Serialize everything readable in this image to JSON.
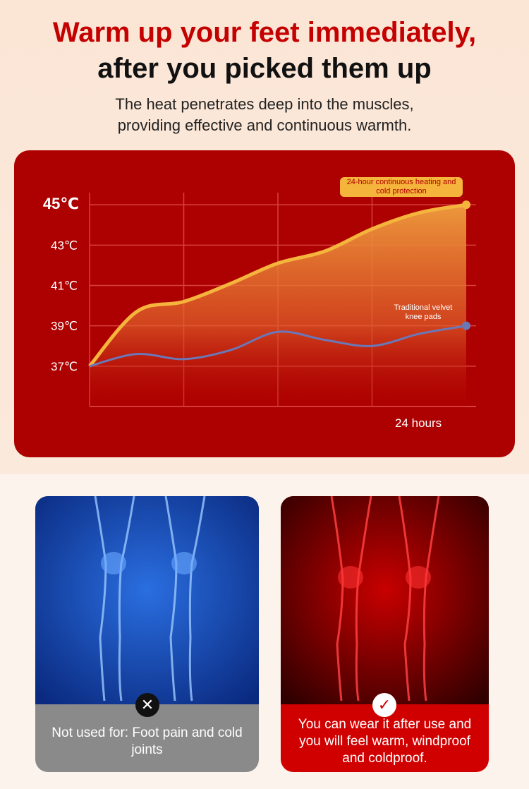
{
  "header": {
    "title": [
      "Warm up your feet immediately,",
      "after you picked them up"
    ],
    "subtitle": [
      "The heat penetrates deep into the muscles,",
      "providing effective and continuous warmth."
    ]
  },
  "chart_data": {
    "type": "line",
    "xlabel": "24 hours",
    "x": [
      0,
      3,
      6,
      9,
      12,
      15,
      18,
      21,
      24
    ],
    "xlim": [
      0,
      24
    ],
    "ylim": [
      35,
      45.6
    ],
    "yticks": [
      {
        "value": 37,
        "label": "37℃"
      },
      {
        "value": 39,
        "label": "39℃"
      },
      {
        "value": 41,
        "label": "41℃"
      },
      {
        "value": 43,
        "label": "43℃"
      },
      {
        "value": 45,
        "label": "45℃"
      }
    ],
    "grid": true,
    "series": [
      {
        "name": "24-hour continuous heating and cold protection",
        "color": "#f5b43c",
        "values": [
          37,
          39.7,
          40.2,
          41.1,
          42.1,
          42.7,
          43.8,
          44.6,
          45
        ]
      },
      {
        "name": "Traditional velvet knee pads",
        "color": "#6a78b8",
        "values": [
          37,
          37.6,
          37.35,
          37.8,
          38.7,
          38.3,
          38.0,
          38.6,
          39
        ]
      }
    ]
  },
  "panels": [
    {
      "caption": "Not used for: Foot pain and cold joints"
    },
    {
      "caption": "You can wear it after use and you will feel warm, windproof and coldproof."
    }
  ]
}
